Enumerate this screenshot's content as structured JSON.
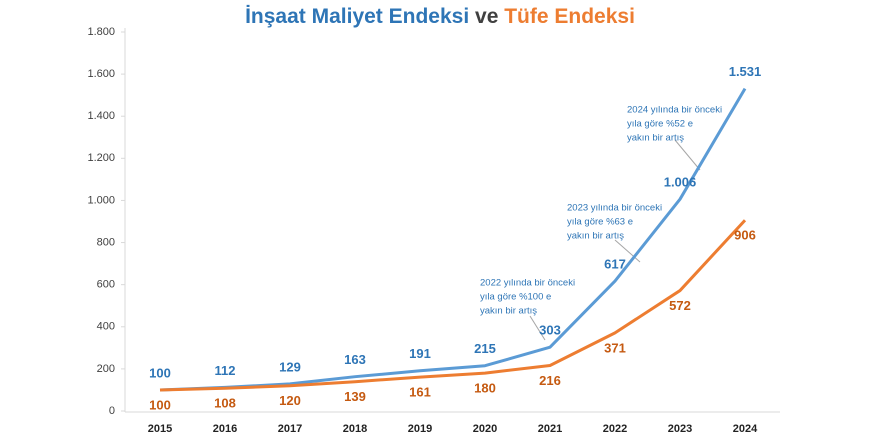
{
  "chart_data": {
    "type": "line",
    "title_parts": [
      {
        "text": "İnşaat Maliyet Endeksi",
        "color": "#2e75b6"
      },
      {
        "text": "ve",
        "color": "#404040"
      },
      {
        "text": "Tüfe Endeksi",
        "color": "#ed7d31"
      }
    ],
    "categories": [
      "2015",
      "2016",
      "2017",
      "2018",
      "2019",
      "2020",
      "2021",
      "2022",
      "2023",
      "2024"
    ],
    "series": [
      {
        "name": "İnşaat Maliyet Endeksi",
        "color": "#5b9bd5",
        "label_color": "#2e75b6",
        "values": [
          100,
          112,
          129,
          163,
          191,
          215,
          303,
          617,
          1006,
          1531
        ],
        "value_labels": [
          "100",
          "112",
          "129",
          "163",
          "191",
          "215",
          "303",
          "617",
          "1.006",
          "1.531"
        ]
      },
      {
        "name": "Tüfe Endeksi",
        "color": "#ed7d31",
        "label_color": "#c55a11",
        "values": [
          100,
          108,
          120,
          139,
          161,
          180,
          216,
          371,
          572,
          906
        ],
        "value_labels": [
          "100",
          "108",
          "120",
          "139",
          "161",
          "180",
          "216",
          "371",
          "572",
          "906"
        ]
      }
    ],
    "ylim": [
      0,
      1800
    ],
    "yticks": [
      0,
      200,
      400,
      600,
      800,
      {
        "value": 1000,
        "label": "1.000"
      },
      {
        "value": 1200,
        "label": "1.200"
      },
      {
        "value": 1400,
        "label": "1.400"
      },
      {
        "value": 1600,
        "label": "1.600"
      },
      {
        "value": 1800,
        "label": "1.800"
      }
    ],
    "grid": false,
    "annotations": [
      {
        "lines": [
          "2022 yılında bir önceki",
          "yıla göre %100 e",
          "yakın bir artış"
        ]
      },
      {
        "lines": [
          "2023 yılında bir önceki",
          "yıla göre %63 e",
          "yakın bir artış"
        ]
      },
      {
        "lines": [
          "2024 yılında bir önceki",
          "yıla göre %52 e",
          "yakın bir artış"
        ]
      }
    ]
  }
}
